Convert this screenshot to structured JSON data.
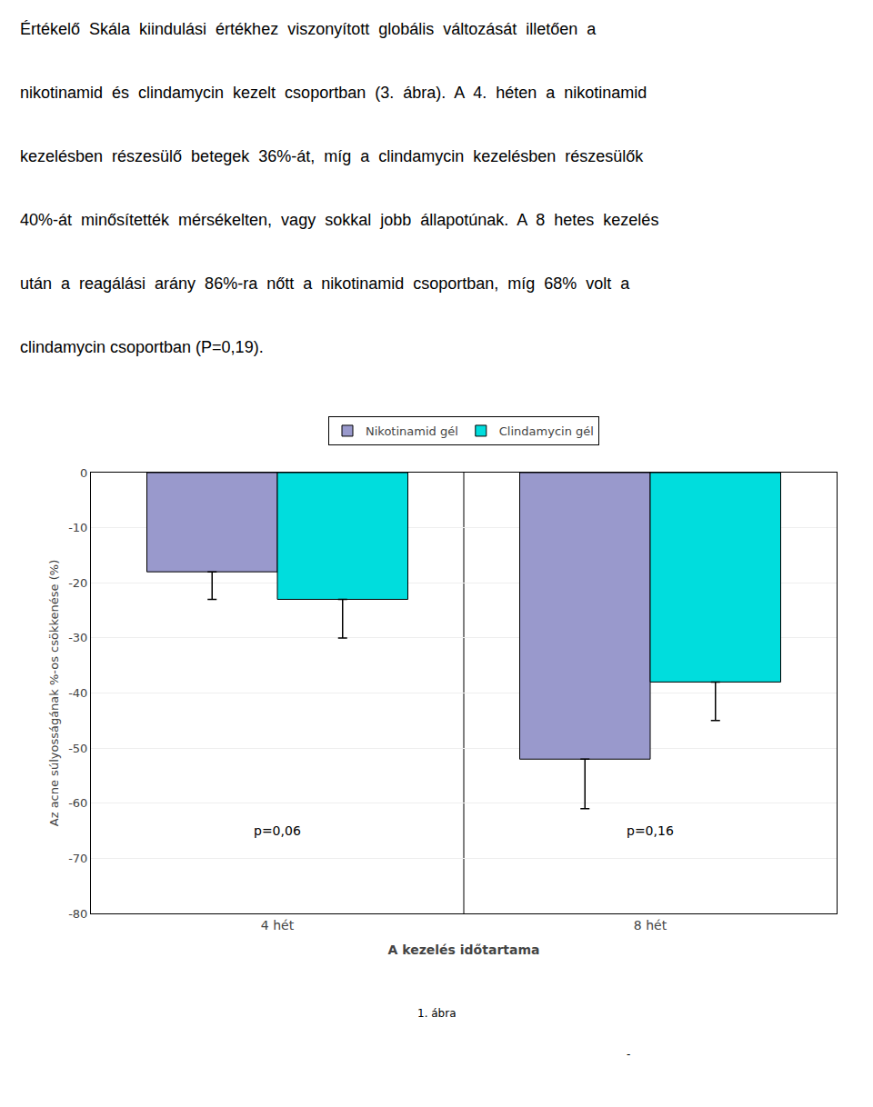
{
  "chart_data": {
    "type": "bar",
    "subtitle": [
      "Értékelő  Skála  kiindulási  értékhez  viszonyított  globális  változását  illetően  a",
      "nikotinamid  és  clindamycin  kezelt  csoportban  (3.  ábra).  A  4.  héten  a  nikotinamid",
      "kezelésben  részesülő  betegek  36%-át,  míg  a  clindamycin  kezelésben  részesülők",
      "40%-át  minősítették  mérsékelten,  vagy  sokkal  jobb  állapotúnak.  A  8  hetes  kezelés",
      "után  a  reagálási  arány  86%-ra  nőtt  a  nikotinamid  csoportban,  míg  68%  volt  a",
      "clindamycin csoportban (P=0,19)."
    ],
    "x_label": "A kezelés időtartama",
    "y_label": "Az acne súlyosságának %-os csökkenése (%)",
    "categories": [
      "4 hét",
      "8 hét"
    ],
    "series": [
      {
        "name": "Nikotinamid gél",
        "color": "#9999cc",
        "values": [
          -18,
          -52
        ],
        "error_minus": [
          5,
          9
        ]
      },
      {
        "name": "Clindamycin gél",
        "color": "#00dddd",
        "values": [
          -23,
          -38
        ],
        "error_minus": [
          7,
          7
        ]
      }
    ],
    "annotations": [
      {
        "text": "p=0,06",
        "category": "4 hét",
        "y": -65
      },
      {
        "text": "p=0,16",
        "category": "8 hét",
        "y": -65
      },
      {
        "text": "1. ábra"
      },
      {
        "text": "-"
      }
    ],
    "ylim": [
      -80,
      0
    ],
    "yticks": [
      0,
      -10,
      -20,
      -30,
      -40,
      -50,
      -60,
      -70,
      -80
    ],
    "grid": true,
    "legend": "top"
  }
}
